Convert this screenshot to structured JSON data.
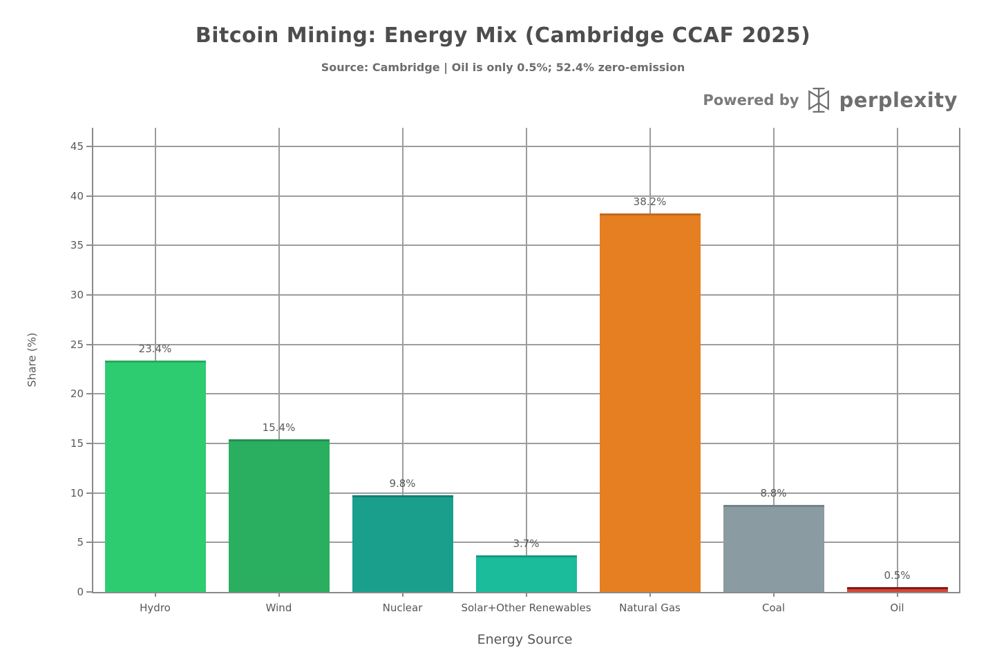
{
  "branding": {
    "powered_by": "Powered by",
    "brand": "perplexity",
    "logo_icon": "perplexity-asterisk-logo"
  },
  "colors": {
    "grid": "#9c9c9c",
    "spine": "#8a8a8a",
    "title_text": "#4d4d4d",
    "subtitle_text": "#6d6d6d",
    "label_text": "#565656",
    "brand_text": "#6e6e6e"
  },
  "chart_data": {
    "type": "bar",
    "title": "Bitcoin Mining: Energy Mix (Cambridge CCAF 2025)",
    "subtitle": "Source: Cambridge | Oil is only 0.5%; 52.4% zero-emission",
    "xlabel": "Energy Source",
    "ylabel": "Share (%)",
    "categories": [
      "Hydro",
      "Wind",
      "Nuclear",
      "Solar+Other Renewables",
      "Natural Gas",
      "Coal",
      "Oil"
    ],
    "values": [
      23.4,
      15.4,
      9.8,
      3.7,
      38.2,
      8.8,
      0.5
    ],
    "value_labels": [
      "23.4%",
      "15.4%",
      "9.8%",
      "3.7%",
      "38.2%",
      "8.8%",
      "0.5%"
    ],
    "bar_colors": [
      "#2ecc71",
      "#2aae60",
      "#1a9f8d",
      "#1abc9c",
      "#e67e22",
      "#8a9ba1",
      "#d64539"
    ],
    "bar_edge_colors": [
      "#26aa5e",
      "#22914f",
      "#128070",
      "#15997f",
      "#c26a1c",
      "#72828a",
      "#801a12"
    ],
    "ylim": [
      0,
      45
    ],
    "ytick_step": 5,
    "grid": true,
    "legend": "none"
  }
}
